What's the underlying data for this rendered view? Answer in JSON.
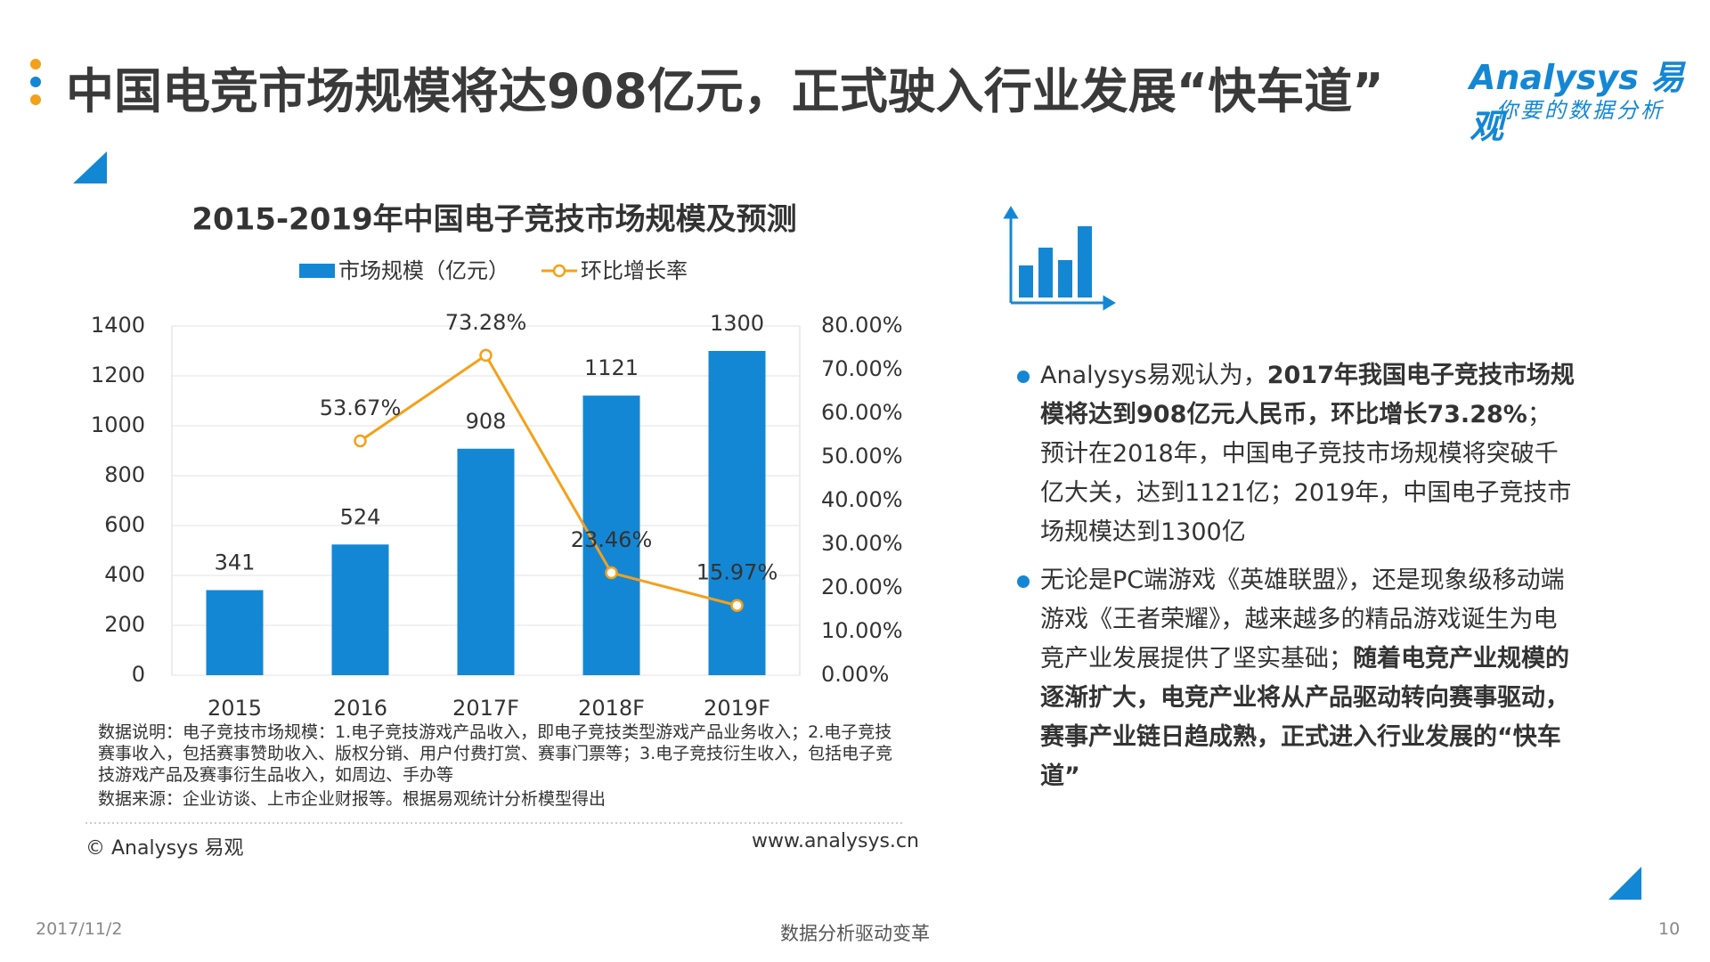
{
  "header": {
    "title": "中国电竞市场规模将达908亿元，正式驶入行业发展“快车道”",
    "logo": "Analysys 易观",
    "tagline": "你要的数据分析"
  },
  "chart_data": {
    "type": "bar",
    "title": "2015-2019年中国电子竞技市场规模及预测",
    "categories": [
      "2015",
      "2016",
      "2017F",
      "2018F",
      "2019F"
    ],
    "series": [
      {
        "name": "市场规模（亿元）",
        "type": "bar",
        "color": "#1487d4",
        "values": [
          341,
          524,
          908,
          1121,
          1300
        ]
      },
      {
        "name": "环比增长率",
        "type": "line",
        "axis": "y2",
        "color": "#f5a01a",
        "values": [
          null,
          53.67,
          73.28,
          23.46,
          15.97
        ],
        "value_labels": [
          null,
          "53.67%",
          "73.28%",
          "23.46%",
          "15.97%"
        ]
      }
    ],
    "ylim": [
      0,
      1400
    ],
    "yticks": [
      0,
      200,
      400,
      600,
      800,
      1000,
      1200,
      1400
    ],
    "y2lim": [
      0,
      80
    ],
    "y2ticks": [
      {
        "value": 0,
        "label": "0.00%"
      },
      {
        "value": 10,
        "label": "10.00%"
      },
      {
        "value": 20,
        "label": "20.00%"
      },
      {
        "value": 30,
        "label": "30.00%"
      },
      {
        "value": 40,
        "label": "40.00%"
      },
      {
        "value": 50,
        "label": "50.00%"
      },
      {
        "value": 60,
        "label": "60.00%"
      },
      {
        "value": 70,
        "label": "70.00%"
      },
      {
        "value": 80,
        "label": "80.00%"
      }
    ],
    "grid": true,
    "note": "数据说明：电子竞技市场规模：1.电子竞技游戏产品收入，即电子竞技类型游戏产品业务收入；2.电子竞技赛事收入，包括赛事赞助收入、版权分销、用户付费打赏、赛事门票等；3.电子竞技衍生收入，包括电子竞技游戏产品及赛事衍生品收入，如周边、手办等",
    "source": "数据来源：企业访谈、上市企业财报等。根据易观统计分析模型得出"
  },
  "bullets": [
    [
      {
        "text": "Analysys易观认为，",
        "bold": false
      },
      {
        "text": "2017年我国电子竞技市场规模将达到908亿元人民币，环比增长73.28%",
        "bold": true
      },
      {
        "text": "；预计在2018年，中国电子竞技市场规模将突破千亿大关，达到1121亿；2019年，中国电子竞技市场规模达到1300亿",
        "bold": false
      }
    ],
    [
      {
        "text": "无论是PC端游戏《英雄联盟》，还是现象级移动端游戏《王者荣耀》，越来越多的精品游戏诞生为电竞产业发展提供了坚实基础；",
        "bold": false
      },
      {
        "text": "随着电竞产业规模的逐渐扩大，电竞产业将从产品驱动转向赛事驱动，赛事产业链日趋成熟，正式进入行业发展的“快车道”",
        "bold": true
      }
    ]
  ],
  "footer": {
    "copyright": "© Analysys 易观",
    "website": "www.analysys.cn",
    "date": "2017/11/2",
    "slogan": "数据分析驱动变革",
    "page": "10"
  }
}
